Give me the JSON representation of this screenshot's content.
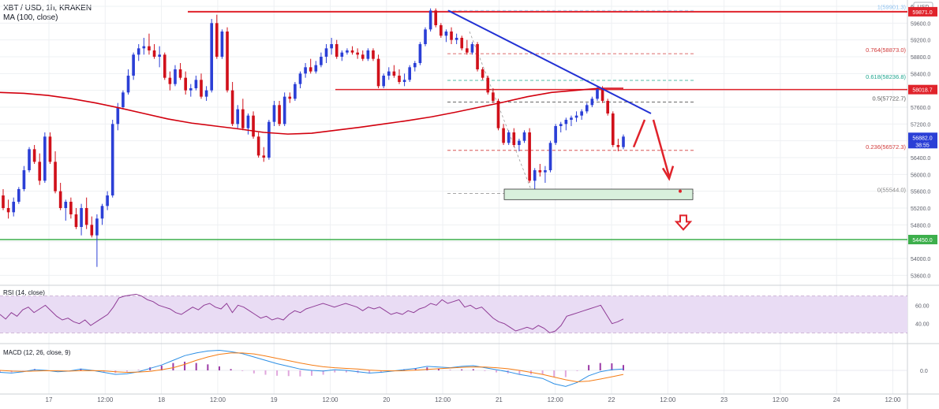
{
  "header": {
    "symbol": "XBT / USD, 1h, KRAKEN",
    "ma_label": "MA (100, close)",
    "currency": "USD"
  },
  "colors": {
    "up": "#2b3fd6",
    "down": "#d0101a",
    "ma": "#d2000e",
    "resistance": "#e0232b",
    "support": "#3daf4c",
    "trendline": "#2231d4",
    "rsi_line": "#8f3c96",
    "rsi_band": "#e9dcf4",
    "macd_line": "#2c8fe5",
    "signal_line": "#f57c14",
    "hist_pos": "#9c3aa6",
    "hist_neg": "#e0a6dd",
    "grid": "#eef0f3",
    "axis_text": "#5d606b"
  },
  "chart_data": {
    "type": "candlestick",
    "price_axis": {
      "ticks": [
        "60000.0",
        "59600.0",
        "59200.0",
        "58800.0",
        "58400.0",
        "58000.0",
        "57600.0",
        "57200.0",
        "56800.0",
        "56400.0",
        "56000.0",
        "55600.0",
        "55200.0",
        "54800.0",
        "54400.0",
        "54000.0",
        "53600.0"
      ],
      "range": [
        53400,
        60150
      ]
    },
    "time_axis": {
      "labels": [
        "17",
        "12:00",
        "18",
        "12:00",
        "19",
        "12:00",
        "20",
        "12:00",
        "21",
        "12:00",
        "22",
        "12:00",
        "23",
        "12:00",
        "24",
        "12:00"
      ]
    },
    "candles": [
      [
        55500,
        55650,
        55150,
        55200
      ],
      [
        55200,
        55400,
        54950,
        55100
      ],
      [
        55100,
        55450,
        55000,
        55350
      ],
      [
        55350,
        55700,
        55300,
        55650
      ],
      [
        55650,
        56200,
        55600,
        56100
      ],
      [
        56100,
        56650,
        56050,
        56600
      ],
      [
        56600,
        56700,
        56250,
        56300
      ],
      [
        56300,
        56500,
        55750,
        55850
      ],
      [
        55850,
        57000,
        55800,
        56900
      ],
      [
        56900,
        57000,
        56250,
        56300
      ],
      [
        56300,
        56550,
        55550,
        55600
      ],
      [
        55600,
        55800,
        55150,
        55200
      ],
      [
        55200,
        55400,
        54900,
        55350
      ],
      [
        55350,
        55450,
        54950,
        55050
      ],
      [
        55050,
        55200,
        54700,
        54750
      ],
      [
        54750,
        55300,
        54550,
        55200
      ],
      [
        55200,
        55450,
        54700,
        54800
      ],
      [
        54800,
        55000,
        54500,
        54550
      ],
      [
        54550,
        55050,
        53800,
        54950
      ],
      [
        54950,
        55300,
        54800,
        55250
      ],
      [
        55250,
        55600,
        55150,
        55500
      ],
      [
        55500,
        57300,
        55450,
        57200
      ],
      [
        57200,
        57700,
        57050,
        57600
      ],
      [
        57600,
        58000,
        57550,
        57950
      ],
      [
        57950,
        58500,
        57900,
        58350
      ],
      [
        58350,
        58900,
        58250,
        58850
      ],
      [
        58850,
        59100,
        58700,
        59000
      ],
      [
        59000,
        59250,
        58850,
        59050
      ],
      [
        59050,
        59350,
        58850,
        58950
      ],
      [
        58950,
        59100,
        58750,
        58800
      ],
      [
        58800,
        59050,
        58550,
        58850
      ],
      [
        58850,
        58900,
        58250,
        58300
      ],
      [
        58300,
        58450,
        58000,
        58150
      ],
      [
        58150,
        58600,
        58100,
        58500
      ],
      [
        58500,
        58650,
        58250,
        58300
      ],
      [
        58300,
        58450,
        57900,
        58000
      ],
      [
        58000,
        58150,
        57850,
        58050
      ],
      [
        58050,
        58350,
        58000,
        58250
      ],
      [
        58250,
        58400,
        57800,
        57850
      ],
      [
        57850,
        58100,
        57750,
        58000
      ],
      [
        58000,
        59700,
        57950,
        59600
      ],
      [
        59600,
        59800,
        58750,
        58800
      ],
      [
        58800,
        59450,
        58750,
        59400
      ],
      [
        59400,
        59500,
        57950,
        58000
      ],
      [
        58000,
        58200,
        57150,
        57200
      ],
      [
        57200,
        57650,
        57100,
        57550
      ],
      [
        57550,
        57800,
        57050,
        57100
      ],
      [
        57100,
        57450,
        56950,
        57400
      ],
      [
        57400,
        57500,
        56850,
        56900
      ],
      [
        56900,
        57000,
        56400,
        56450
      ],
      [
        56450,
        56650,
        56300,
        56400
      ],
      [
        56400,
        57300,
        56350,
        57250
      ],
      [
        57250,
        57750,
        57150,
        57650
      ],
      [
        57650,
        57750,
        57150,
        57200
      ],
      [
        57200,
        57950,
        57150,
        57850
      ],
      [
        57850,
        57950,
        57700,
        57800
      ],
      [
        57800,
        58200,
        57750,
        58150
      ],
      [
        58150,
        58450,
        58050,
        58400
      ],
      [
        58400,
        58650,
        58300,
        58550
      ],
      [
        58550,
        58750,
        58400,
        58450
      ],
      [
        58450,
        58700,
        58400,
        58600
      ],
      [
        58600,
        58900,
        58550,
        58800
      ],
      [
        58800,
        59100,
        58650,
        59000
      ],
      [
        59000,
        59250,
        58850,
        59100
      ],
      [
        59100,
        59200,
        58750,
        58800
      ],
      [
        58800,
        58950,
        58700,
        58900
      ],
      [
        58900,
        59000,
        58850,
        58950
      ],
      [
        58950,
        59050,
        58850,
        58900
      ],
      [
        58900,
        59000,
        58750,
        58850
      ],
      [
        58850,
        58950,
        58700,
        58750
      ],
      [
        58750,
        59000,
        58700,
        58950
      ],
      [
        58950,
        59000,
        58700,
        58750
      ],
      [
        58750,
        58850,
        58050,
        58100
      ],
      [
        58100,
        58400,
        58050,
        58350
      ],
      [
        58350,
        58550,
        58250,
        58450
      ],
      [
        58450,
        58600,
        58300,
        58350
      ],
      [
        58350,
        58500,
        58150,
        58200
      ],
      [
        58200,
        58400,
        58100,
        58250
      ],
      [
        58250,
        58600,
        58200,
        58550
      ],
      [
        58550,
        58700,
        58450,
        58650
      ],
      [
        58650,
        59150,
        58600,
        59100
      ],
      [
        59100,
        59500,
        59050,
        59450
      ],
      [
        59450,
        59950,
        59400,
        59900
      ],
      [
        59900,
        59950,
        59500,
        59550
      ],
      [
        59550,
        59600,
        59250,
        59300
      ],
      [
        59300,
        59450,
        59150,
        59400
      ],
      [
        59400,
        59500,
        59100,
        59200
      ],
      [
        59200,
        59350,
        59100,
        59250
      ],
      [
        59250,
        59300,
        58950,
        59000
      ],
      [
        59000,
        59200,
        58850,
        58900
      ],
      [
        58900,
        59150,
        58850,
        59100
      ],
      [
        59100,
        59150,
        58450,
        58500
      ],
      [
        58500,
        58550,
        58250,
        58300
      ],
      [
        58300,
        58350,
        57900,
        57950
      ],
      [
        57950,
        58050,
        57700,
        57750
      ],
      [
        57750,
        57800,
        57050,
        57100
      ],
      [
        57100,
        57200,
        56700,
        56750
      ],
      [
        56750,
        57050,
        56700,
        57000
      ],
      [
        57000,
        57100,
        56650,
        56700
      ],
      [
        56700,
        56850,
        56550,
        56800
      ],
      [
        56800,
        57050,
        56750,
        57000
      ],
      [
        57000,
        57100,
        55800,
        55850
      ],
      [
        55850,
        56150,
        55650,
        56100
      ],
      [
        56100,
        56250,
        55950,
        56050
      ],
      [
        56050,
        56200,
        55800,
        56100
      ],
      [
        56100,
        56800,
        56050,
        56750
      ],
      [
        56750,
        57200,
        56700,
        57150
      ],
      [
        57150,
        57250,
        57000,
        57200
      ],
      [
        57200,
        57350,
        57050,
        57300
      ],
      [
        57300,
        57400,
        57150,
        57350
      ],
      [
        57350,
        57500,
        57250,
        57400
      ],
      [
        57400,
        57550,
        57300,
        57500
      ],
      [
        57500,
        57700,
        57450,
        57650
      ],
      [
        57650,
        57850,
        57600,
        57800
      ],
      [
        57800,
        58100,
        57750,
        58050
      ],
      [
        58050,
        58100,
        57700,
        57750
      ],
      [
        57750,
        57800,
        57400,
        57450
      ],
      [
        57450,
        57500,
        56650,
        56700
      ],
      [
        56700,
        56850,
        56550,
        56650
      ],
      [
        56650,
        56950,
        56600,
        56900
      ]
    ],
    "moving_average": {
      "name": "MA (100, close)",
      "values": [
        57950,
        57930,
        57880,
        57800,
        57700,
        57580,
        57450,
        57320,
        57220,
        57150,
        57080,
        57000,
        56960,
        56980,
        57050,
        57120,
        57200,
        57280,
        57370,
        57480,
        57600,
        57720,
        57850,
        57950,
        58000,
        58050,
        58050
      ]
    },
    "levels": {
      "resistance_top": {
        "label": "59871.0",
        "value": 59871
      },
      "resistance_mid": {
        "label": "58018.7",
        "value": 58018.7
      },
      "support": {
        "label": "54450.0",
        "value": 54450
      },
      "last_price": {
        "label": "56882.0",
        "value": 56882,
        "timer": "38:55"
      }
    },
    "fibonacci": [
      {
        "label": "1(59901.3)",
        "value": 59901.3
      },
      {
        "label": "0.764(58873.0)",
        "value": 58873.0
      },
      {
        "label": "0.618(58236.8)",
        "value": 58236.8
      },
      {
        "label": "0.5(57722.7)",
        "value": 57722.7
      },
      {
        "label": "0.236(56572.3)",
        "value": 56572.3
      },
      {
        "label": "0(55544.0)",
        "value": 55544.0
      }
    ],
    "trendline": {
      "start": 59900,
      "end": 57450
    },
    "target_zone": {
      "low": 55400,
      "high": 55650
    },
    "rsi": {
      "label": "RSI (14, close)",
      "ticks": [
        "60.00",
        "40.00"
      ],
      "band": [
        30,
        70
      ],
      "values": [
        50,
        45,
        52,
        48,
        55,
        58,
        52,
        56,
        60,
        54,
        48,
        44,
        46,
        42,
        40,
        44,
        38,
        42,
        46,
        50,
        58,
        68,
        70,
        71,
        72,
        70,
        66,
        64,
        60,
        58,
        56,
        52,
        50,
        54,
        58,
        55,
        60,
        62,
        58,
        56,
        62,
        52,
        60,
        58,
        54,
        50,
        46,
        48,
        44,
        46,
        44,
        50,
        54,
        52,
        56,
        58,
        60,
        62,
        60,
        58,
        60,
        62,
        60,
        58,
        54,
        58,
        56,
        58,
        54,
        50,
        52,
        50,
        54,
        52,
        56,
        58,
        62,
        60,
        66,
        62,
        64,
        66,
        58,
        60,
        56,
        58,
        52,
        46,
        42,
        40,
        36,
        32,
        34,
        36,
        34,
        38,
        35,
        30,
        32,
        38,
        48,
        50,
        52,
        54,
        56,
        58,
        60,
        50,
        40,
        42,
        45
      ]
    },
    "macd": {
      "label": "MACD (12, 26, close, 9)",
      "ticks": [
        "0.0"
      ],
      "macd_values": [
        -30,
        -40,
        -20,
        10,
        0,
        -20,
        -10,
        20,
        0,
        -30,
        -60,
        -50,
        -20,
        30,
        80,
        150,
        220,
        260,
        290,
        300,
        280,
        250,
        200,
        150,
        100,
        60,
        20,
        0,
        -10,
        10,
        0,
        -20,
        -40,
        -30,
        -10,
        10,
        30,
        60,
        50,
        40,
        60,
        70,
        40,
        10,
        -20,
        -60,
        -90,
        -120,
        -200,
        -240,
        -180,
        -80,
        -20,
        10,
        20
      ],
      "signal_values": [
        0,
        -10,
        -15,
        -10,
        -5,
        -8,
        -10,
        -5,
        -3,
        -8,
        -20,
        -30,
        -25,
        -15,
        10,
        40,
        90,
        150,
        200,
        240,
        260,
        260,
        245,
        215,
        180,
        145,
        110,
        80,
        55,
        40,
        30,
        20,
        5,
        -5,
        -8,
        -5,
        3,
        15,
        25,
        35,
        45,
        52,
        50,
        40,
        25,
        0,
        -30,
        -60,
        -100,
        -140,
        -170,
        -160,
        -130,
        -95,
        -60
      ],
      "histogram": [
        -30,
        -30,
        -5,
        20,
        5,
        -12,
        0,
        25,
        3,
        -22,
        -40,
        -20,
        5,
        45,
        70,
        110,
        130,
        110,
        90,
        60,
        20,
        -10,
        -45,
        -65,
        -80,
        -85,
        -90,
        -80,
        -65,
        -30,
        -30,
        -40,
        -45,
        -25,
        -2,
        15,
        27,
        45,
        25,
        5,
        15,
        18,
        -10,
        -30,
        -45,
        -60,
        -60,
        -60,
        -100,
        -100,
        -10,
        80,
        110,
        105,
        80
      ]
    }
  }
}
